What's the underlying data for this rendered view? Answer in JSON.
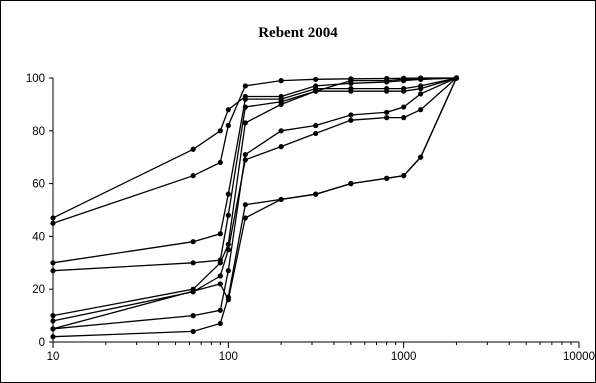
{
  "chart_data": {
    "type": "line",
    "title": "Rebent 2004",
    "xlabel": "",
    "ylabel": "",
    "x_scale": "log",
    "xlim": [
      10,
      10000
    ],
    "ylim": [
      0,
      100
    ],
    "x_ticks": [
      "10",
      "100",
      "1000",
      "10000"
    ],
    "y_ticks": [
      "0",
      "20",
      "40",
      "60",
      "80",
      "100"
    ],
    "grid": false,
    "legend": "none",
    "series": [
      {
        "points": [
          [
            10,
            47
          ],
          [
            63,
            73
          ],
          [
            90,
            80
          ],
          [
            100,
            88
          ],
          [
            125,
            93
          ],
          [
            200,
            93
          ],
          [
            315,
            97
          ],
          [
            500,
            98
          ],
          [
            800,
            98.5
          ],
          [
            1000,
            99
          ],
          [
            1250,
            99.5
          ],
          [
            2000,
            100
          ]
        ]
      },
      {
        "points": [
          [
            10,
            45
          ],
          [
            63,
            63
          ],
          [
            90,
            68
          ],
          [
            100,
            82
          ],
          [
            125,
            97
          ],
          [
            200,
            99
          ],
          [
            315,
            99.5
          ],
          [
            500,
            99.7
          ],
          [
            800,
            99.8
          ],
          [
            1000,
            99.9
          ],
          [
            1250,
            100
          ],
          [
            2000,
            100
          ]
        ]
      },
      {
        "points": [
          [
            10,
            30
          ],
          [
            63,
            38
          ],
          [
            90,
            41
          ],
          [
            100,
            56
          ],
          [
            125,
            92
          ],
          [
            200,
            92
          ],
          [
            315,
            96
          ],
          [
            500,
            96
          ],
          [
            800,
            96
          ],
          [
            1000,
            96
          ],
          [
            1250,
            97
          ],
          [
            2000,
            100
          ]
        ]
      },
      {
        "points": [
          [
            10,
            27
          ],
          [
            63,
            30
          ],
          [
            90,
            31
          ],
          [
            100,
            48
          ],
          [
            125,
            89
          ],
          [
            200,
            91
          ],
          [
            315,
            95
          ],
          [
            500,
            95
          ],
          [
            800,
            95
          ],
          [
            1000,
            95
          ],
          [
            1250,
            96
          ],
          [
            2000,
            100
          ]
        ]
      },
      {
        "points": [
          [
            10,
            10
          ],
          [
            63,
            20
          ],
          [
            90,
            30
          ],
          [
            100,
            37
          ],
          [
            125,
            83
          ],
          [
            200,
            90
          ],
          [
            315,
            95
          ],
          [
            500,
            99
          ],
          [
            800,
            99
          ],
          [
            1000,
            99.5
          ],
          [
            1250,
            99.5
          ],
          [
            2000,
            100
          ]
        ]
      },
      {
        "points": [
          [
            10,
            8
          ],
          [
            63,
            19
          ],
          [
            90,
            25
          ],
          [
            100,
            35
          ],
          [
            125,
            69
          ],
          [
            200,
            74
          ],
          [
            315,
            79
          ],
          [
            500,
            84
          ],
          [
            800,
            85
          ],
          [
            1000,
            85
          ],
          [
            1250,
            88
          ],
          [
            2000,
            100
          ]
        ]
      },
      {
        "points": [
          [
            10,
            5
          ],
          [
            63,
            10
          ],
          [
            90,
            12
          ],
          [
            100,
            27
          ],
          [
            125,
            71
          ],
          [
            200,
            80
          ],
          [
            315,
            82
          ],
          [
            500,
            86
          ],
          [
            800,
            87
          ],
          [
            1000,
            89
          ],
          [
            1250,
            94
          ],
          [
            2000,
            100
          ]
        ]
      },
      {
        "points": [
          [
            10,
            2
          ],
          [
            63,
            4
          ],
          [
            90,
            7
          ],
          [
            100,
            17
          ],
          [
            125,
            52
          ],
          [
            200,
            54
          ],
          [
            315,
            56
          ],
          [
            500,
            60
          ],
          [
            800,
            62
          ],
          [
            1000,
            63
          ],
          [
            1250,
            70
          ],
          [
            2000,
            100
          ]
        ]
      },
      {
        "points": [
          [
            10,
            5
          ],
          [
            90,
            22
          ],
          [
            100,
            16
          ],
          [
            125,
            47
          ],
          [
            200,
            54
          ],
          [
            315,
            56
          ],
          [
            500,
            60
          ],
          [
            800,
            62
          ],
          [
            1000,
            63
          ],
          [
            1250,
            70
          ],
          [
            2000,
            100
          ]
        ]
      }
    ]
  }
}
